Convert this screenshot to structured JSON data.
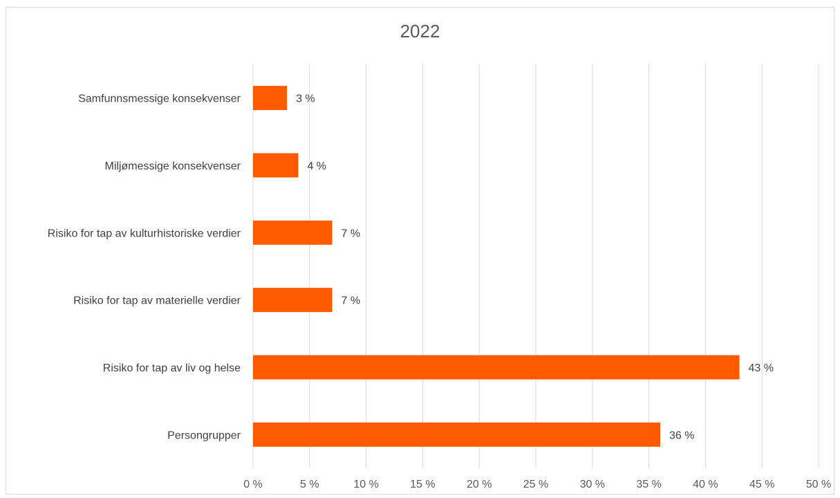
{
  "chart_data": {
    "type": "bar",
    "orientation": "horizontal",
    "title": "2022",
    "xlabel": "",
    "ylabel": "",
    "categories": [
      "Samfunnsmessige konsekvenser",
      "Miljømessige konsekvenser",
      "Risiko for tap av kulturhistoriske verdier",
      "Risiko for tap av materielle verdier",
      "Risiko for tap av liv og helse",
      "Persongrupper"
    ],
    "values": [
      3,
      4,
      7,
      7,
      43,
      36
    ],
    "value_labels": [
      "3 %",
      "4 %",
      "7 %",
      "7 %",
      "43 %",
      "36 %"
    ],
    "xlim": [
      0,
      50
    ],
    "x_ticks": [
      0,
      5,
      10,
      15,
      20,
      25,
      30,
      35,
      40,
      45,
      50
    ],
    "x_tick_labels": [
      "0 %",
      "5 %",
      "10 %",
      "15 %",
      "20 %",
      "25 %",
      "30 %",
      "35 %",
      "40 %",
      "45 %",
      "50 %"
    ],
    "grid": true,
    "legend": "none",
    "bar_color": "#ff5a00",
    "grid_color": "#d9d9d9"
  }
}
